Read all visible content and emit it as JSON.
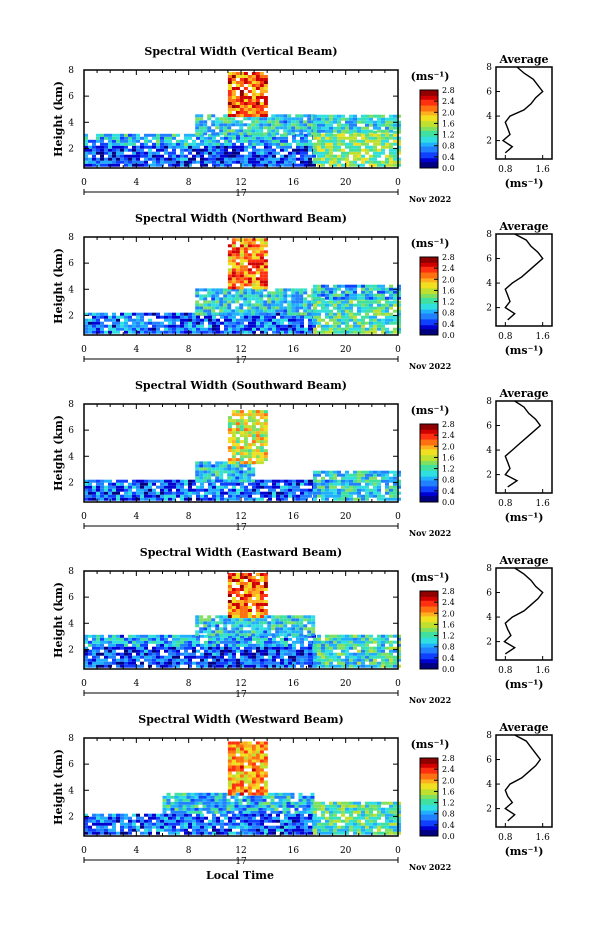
{
  "panels": [
    {
      "title": "Spectral Width (Vertical Beam)",
      "avg_xticks": [
        "0.8",
        "1.6"
      ]
    },
    {
      "title": "Spectral Width (Northward Beam)",
      "avg_xticks": [
        "0.8",
        "1.6"
      ]
    },
    {
      "title": "Spectral Width (Southward Beam)",
      "avg_xticks": [
        "0.8",
        "1.6"
      ]
    },
    {
      "title": "Spectral Width (Eastward Beam)",
      "avg_xticks": [
        "0.8",
        "1.6"
      ]
    },
    {
      "title": "Spectral Width (Westward Beam)",
      "avg_xticks": [
        "0.8",
        "1.6"
      ]
    }
  ],
  "common": {
    "ylabel": "Height (km)",
    "yticks": [
      "2",
      "4",
      "6",
      "8"
    ],
    "xticks": [
      "0",
      "4",
      "8",
      "12",
      "16",
      "20",
      "0"
    ],
    "day": "17",
    "date": "Nov 2022",
    "unit": "(ms⁻¹)",
    "avg_title": "Average",
    "avg_unit": "(ms⁻¹)",
    "avg_yticks": [
      "2",
      "4",
      "6",
      "8"
    ],
    "colorbar_ticks": [
      "2.8",
      "2.4",
      "2.0",
      "1.6",
      "1.2",
      "0.8",
      "0.4",
      "0.0"
    ],
    "xlabel": "Local Time"
  },
  "colors": {
    "scale": [
      "#000080",
      "#0000d0",
      "#1040ff",
      "#2080ff",
      "#20b0ff",
      "#30e0e0",
      "#40e0a0",
      "#80e060",
      "#c0e030",
      "#f0e020",
      "#ffb020",
      "#ff7010",
      "#ff3010",
      "#d00000",
      "#900000"
    ]
  },
  "chart_data": [
    {
      "type": "heatmap",
      "title": "Spectral Width (Vertical Beam)",
      "ylabel": "Height (km)",
      "xlim_hours": [
        0,
        24
      ],
      "ylim_km": [
        0.5,
        8
      ],
      "colorbar_range": [
        0.0,
        2.8
      ],
      "regions": [
        {
          "t0": 0,
          "t1": 17.5,
          "h0": 0.6,
          "h1": 2.2,
          "v": 0.5
        },
        {
          "t0": 0,
          "t1": 17.5,
          "h0": 2.2,
          "h1": 3.0,
          "v": 0.9
        },
        {
          "t0": 8.5,
          "t1": 17.5,
          "h0": 3.0,
          "h1": 4.4,
          "v": 1.0
        },
        {
          "t0": 11,
          "t1": 14,
          "h0": 4.4,
          "h1": 7.8,
          "v": 2.2
        },
        {
          "t0": 17.5,
          "t1": 24,
          "h0": 0.6,
          "h1": 3.2,
          "v": 1.4
        },
        {
          "t0": 17.5,
          "t1": 24,
          "h0": 3.2,
          "h1": 4.4,
          "v": 1.0
        }
      ],
      "average_profile": {
        "height_km": [
          1.0,
          1.5,
          2.0,
          2.5,
          3.0,
          3.5,
          4.0,
          4.5,
          5.0,
          5.5,
          6.0,
          6.5,
          7.0,
          7.5,
          8.0
        ],
        "width_ms": [
          0.8,
          0.95,
          0.75,
          0.9,
          0.85,
          0.8,
          0.9,
          1.2,
          1.35,
          1.45,
          1.6,
          1.5,
          1.4,
          1.2,
          1.05
        ]
      }
    },
    {
      "type": "heatmap",
      "title": "Spectral Width (Northward Beam)",
      "ylabel": "Height (km)",
      "xlim_hours": [
        0,
        24
      ],
      "ylim_km": [
        0.5,
        8
      ],
      "colorbar_range": [
        0.0,
        2.8
      ],
      "regions": [
        {
          "t0": 0,
          "t1": 17.5,
          "h0": 0.6,
          "h1": 2.0,
          "v": 0.6
        },
        {
          "t0": 8.5,
          "t1": 17.5,
          "h0": 2.0,
          "h1": 4.0,
          "v": 1.0
        },
        {
          "t0": 11,
          "t1": 14,
          "h0": 4.0,
          "h1": 7.8,
          "v": 2.1
        },
        {
          "t0": 17.5,
          "t1": 24,
          "h0": 0.6,
          "h1": 3.2,
          "v": 1.2
        },
        {
          "t0": 17.5,
          "t1": 24,
          "h0": 3.2,
          "h1": 4.2,
          "v": 0.9
        }
      ],
      "average_profile": {
        "height_km": [
          1.0,
          1.5,
          2.0,
          2.5,
          3.0,
          3.5,
          4.0,
          4.5,
          5.0,
          5.5,
          6.0,
          6.5,
          7.0,
          7.5,
          8.0
        ],
        "width_ms": [
          0.85,
          1.0,
          0.8,
          0.9,
          0.85,
          0.8,
          0.95,
          1.15,
          1.3,
          1.45,
          1.6,
          1.5,
          1.35,
          1.25,
          1.0
        ]
      }
    },
    {
      "type": "heatmap",
      "title": "Spectral Width (Southward Beam)",
      "ylabel": "Height (km)",
      "xlim_hours": [
        0,
        24
      ],
      "ylim_km": [
        0.5,
        8
      ],
      "colorbar_range": [
        0.0,
        2.8
      ],
      "regions": [
        {
          "t0": 0,
          "t1": 17.5,
          "h0": 0.6,
          "h1": 2.0,
          "v": 0.6
        },
        {
          "t0": 8.5,
          "t1": 13,
          "h0": 2.0,
          "h1": 3.4,
          "v": 0.9
        },
        {
          "t0": 11,
          "t1": 14,
          "h0": 3.4,
          "h1": 7.4,
          "v": 1.7
        },
        {
          "t0": 17.5,
          "t1": 24,
          "h0": 0.6,
          "h1": 2.8,
          "v": 1.0
        }
      ],
      "average_profile": {
        "height_km": [
          1.0,
          1.5,
          2.0,
          2.5,
          3.0,
          3.5,
          4.0,
          4.5,
          5.0,
          5.5,
          6.0,
          6.5,
          7.0,
          7.5,
          8.0
        ],
        "width_ms": [
          0.85,
          1.05,
          0.8,
          0.9,
          0.85,
          0.8,
          0.95,
          1.1,
          1.25,
          1.4,
          1.55,
          1.45,
          1.3,
          1.2,
          1.0
        ]
      }
    },
    {
      "type": "heatmap",
      "title": "Spectral Width (Eastward Beam)",
      "ylabel": "Height (km)",
      "xlim_hours": [
        0,
        24
      ],
      "ylim_km": [
        0.5,
        8
      ],
      "colorbar_range": [
        0.0,
        2.8
      ],
      "regions": [
        {
          "t0": 0,
          "t1": 17.5,
          "h0": 0.6,
          "h1": 2.2,
          "v": 0.5
        },
        {
          "t0": 0,
          "t1": 17.5,
          "h0": 2.2,
          "h1": 3.0,
          "v": 0.8
        },
        {
          "t0": 8.5,
          "t1": 17.5,
          "h0": 3.0,
          "h1": 4.4,
          "v": 1.0
        },
        {
          "t0": 11,
          "t1": 14,
          "h0": 4.4,
          "h1": 7.8,
          "v": 2.2
        },
        {
          "t0": 17.5,
          "t1": 24,
          "h0": 0.6,
          "h1": 3.0,
          "v": 1.1
        }
      ],
      "average_profile": {
        "height_km": [
          1.0,
          1.5,
          2.0,
          2.5,
          3.0,
          3.5,
          4.0,
          4.5,
          5.0,
          5.5,
          6.0,
          6.5,
          7.0,
          7.5,
          8.0
        ],
        "width_ms": [
          0.8,
          1.0,
          0.78,
          0.92,
          0.85,
          0.8,
          0.95,
          1.2,
          1.35,
          1.5,
          1.6,
          1.45,
          1.35,
          1.2,
          1.0
        ]
      }
    },
    {
      "type": "heatmap",
      "title": "Spectral Width (Westward Beam)",
      "ylabel": "Height (km)",
      "xlim_hours": [
        0,
        24
      ],
      "ylim_km": [
        0.5,
        8
      ],
      "colorbar_range": [
        0.0,
        2.8
      ],
      "regions": [
        {
          "t0": 0,
          "t1": 17.5,
          "h0": 0.6,
          "h1": 2.2,
          "v": 0.6
        },
        {
          "t0": 6,
          "t1": 17.5,
          "h0": 2.2,
          "h1": 3.6,
          "v": 0.9
        },
        {
          "t0": 11,
          "t1": 14,
          "h0": 3.6,
          "h1": 7.6,
          "v": 2.0
        },
        {
          "t0": 17.5,
          "t1": 24,
          "h0": 0.6,
          "h1": 3.0,
          "v": 1.2
        }
      ],
      "average_profile": {
        "height_km": [
          1.0,
          1.5,
          2.0,
          2.5,
          3.0,
          3.5,
          4.0,
          4.5,
          5.0,
          5.5,
          6.0,
          6.5,
          7.0,
          7.5,
          8.0
        ],
        "width_ms": [
          0.85,
          1.0,
          0.8,
          0.95,
          0.85,
          0.8,
          0.9,
          1.15,
          1.3,
          1.45,
          1.55,
          1.45,
          1.35,
          1.25,
          1.0
        ]
      }
    }
  ]
}
